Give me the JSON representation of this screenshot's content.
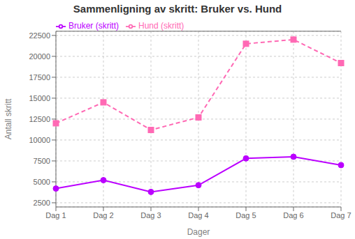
{
  "chart_data": {
    "type": "line",
    "title": "Sammenligning av skritt: Bruker vs. Hund",
    "x_label": "Dager",
    "y_label": "Antall skritt",
    "categories": [
      "Dag 1",
      "Dag 2",
      "Dag 3",
      "Dag 4",
      "Dag 5",
      "Dag 6",
      "Dag 7"
    ],
    "series": [
      {
        "name": "Bruker (skritt)",
        "color": "#bb00ff",
        "marker": "circle",
        "line_style": "solid",
        "values": [
          4200,
          5200,
          3800,
          4600,
          7800,
          8000,
          7000
        ]
      },
      {
        "name": "Hund (skritt)",
        "color": "#ff69b4",
        "marker": "square",
        "line_style": "dashed",
        "values": [
          12000,
          14500,
          11200,
          12700,
          21500,
          22000,
          19200
        ]
      }
    ],
    "ylim": [
      2000,
      23000
    ],
    "yticks": [
      2500,
      5000,
      7500,
      10000,
      12500,
      15000,
      17500,
      20000,
      22500
    ],
    "grid": true,
    "legend": "upper left"
  }
}
